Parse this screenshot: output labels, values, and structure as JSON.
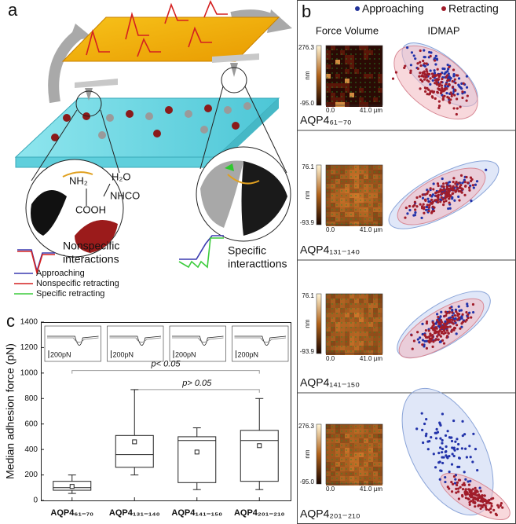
{
  "panel_a": {
    "label": "a",
    "chem_labels": [
      "NH₂",
      "H₂O",
      "NHCO",
      "COOH"
    ],
    "nonspecific_label": [
      "Nonspecific",
      "interactions"
    ],
    "specific_label": [
      "Specific",
      "interacttions"
    ],
    "legend": [
      {
        "name": "Approaching",
        "color": "#3b3bb0"
      },
      {
        "name": "Nonspecific retracting",
        "color": "#d42020"
      },
      {
        "name": "Specific retracting",
        "color": "#3ccc3c"
      }
    ]
  },
  "panel_b": {
    "label": "b",
    "legend": [
      {
        "name": "Approaching",
        "color": "#22339a"
      },
      {
        "name": "Retracting",
        "color": "#a01c2a"
      }
    ],
    "col_titles": [
      "Force Volume",
      "IDMAP"
    ],
    "rows": [
      {
        "name": "AQP4₆₁₋₇₀",
        "cbar_max": "276.3",
        "cbar_min": "-95.0",
        "unit": "nm",
        "x_start": "0.0",
        "x_end": "41.0 µm"
      },
      {
        "name": "AQP4₁₃₁₋₁₄₀",
        "cbar_max": "76.1",
        "cbar_min": "-93.9",
        "unit": "nm",
        "x_start": "0.0",
        "x_end": "41.0 µm"
      },
      {
        "name": "AQP4₁₄₁₋₁₅₀",
        "cbar_max": "76.1",
        "cbar_min": "-93.9",
        "unit": "nm",
        "x_start": "0.0",
        "x_end": "41.0 µm"
      },
      {
        "name": "AQP4₂₀₁₋₂₁₀",
        "cbar_max": "276.3",
        "cbar_min": "-95.0",
        "unit": "nm",
        "x_start": "0.0",
        "x_end": "41.0 µm"
      }
    ]
  },
  "chart_data": {
    "type": "box",
    "label": "c",
    "y_label": "Median adhesion force (pN)",
    "categories": [
      "AQP4₆₁₋₇₀",
      "AQP4₁₃₁₋₁₄₀",
      "AQP4₁₄₁₋₁₅₀",
      "AQP4₂₀₁₋₂₁₀"
    ],
    "min": [
      55,
      200,
      85,
      85
    ],
    "q1": [
      80,
      260,
      140,
      150
    ],
    "median": [
      100,
      360,
      470,
      470
    ],
    "q3": [
      150,
      510,
      500,
      550
    ],
    "max": [
      200,
      870,
      570,
      800
    ],
    "mean": [
      110,
      460,
      380,
      430
    ],
    "color": "#222222",
    "ylim": [
      0,
      1400
    ],
    "yticks": [
      0,
      200,
      400,
      600,
      800,
      1000,
      1200,
      1400
    ],
    "annotations": [
      {
        "text": "p< 0.05",
        "y": 1020
      },
      {
        "text": "p> 0.05",
        "y": 870
      }
    ],
    "inset_labels": [
      "200pN",
      "200pN",
      "200pN",
      "200pN"
    ]
  }
}
